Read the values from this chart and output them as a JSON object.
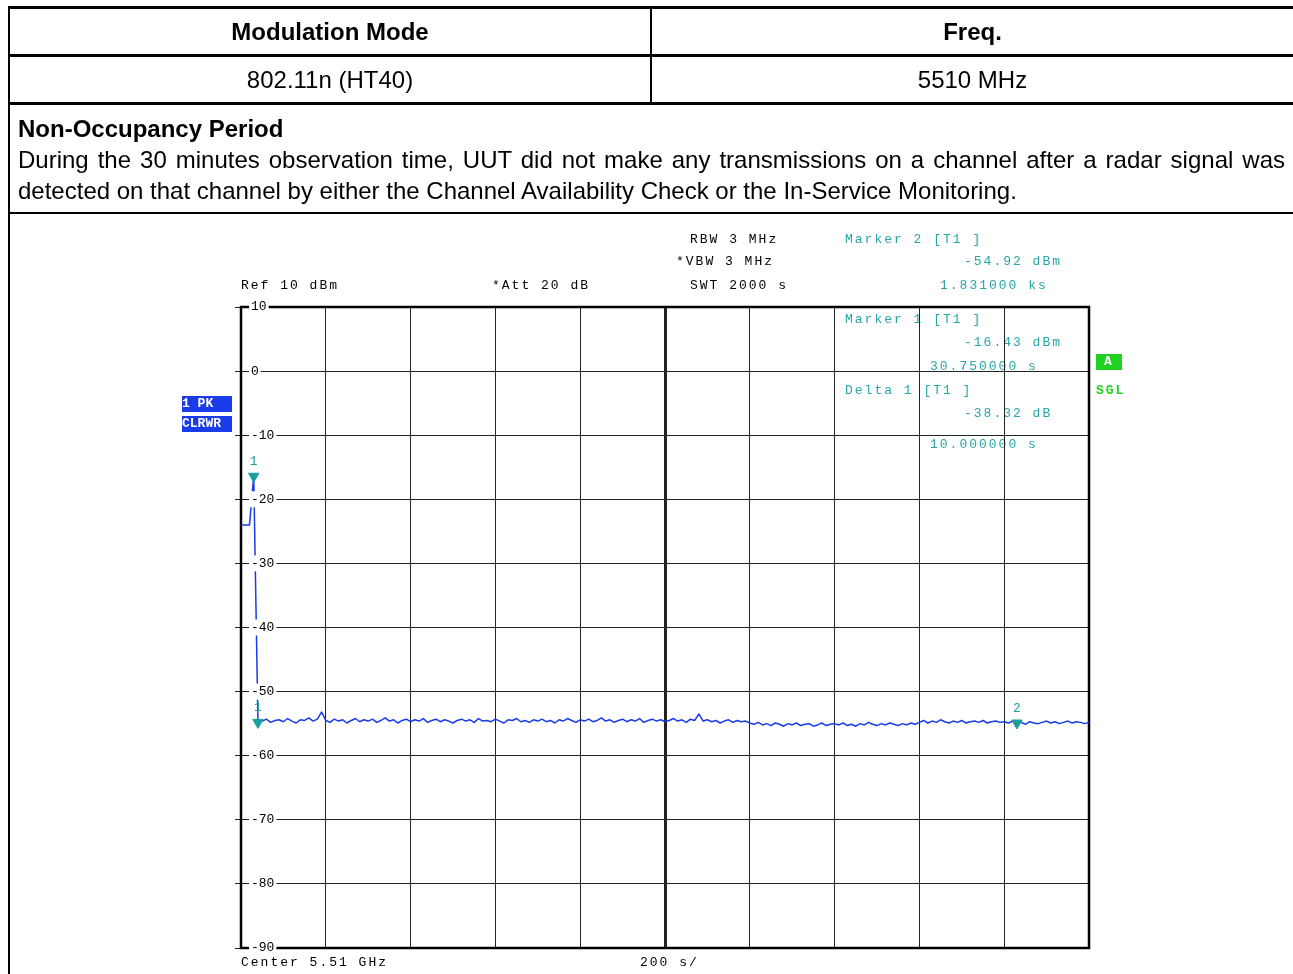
{
  "chart_data": {
    "type": "line",
    "title": "Non-Occupancy Period",
    "subtitle": "During the 30 minutes observation time, UUT did not make any transmissions on a channel after a radar signal was detected on that channel by either the Channel Availability Check or the In-Service Monitoring.",
    "annotations": [
      "Modulation Mode",
      "Freq.",
      "802.11n (HT40)",
      "5510 MHz",
      "RBW 3 MHz",
      "*VBW 3 MHz",
      "SWT 2000 s",
      "Ref 10 dBm",
      "*Att 20 dB",
      "Marker 2 [T1 ]",
      "-54.92 dBm",
      "1.831000 ks",
      "Marker 1 [T1 ]",
      "-16.43 dBm",
      "30.750000 s",
      "Delta 1 [T1 ]",
      "-38.32 dB",
      "10.000000 s",
      "1 PK",
      "CLRWR",
      "A",
      "SGL",
      "Center 5.51 GHz",
      "200 s/"
    ],
    "categories": [
      null,
      null,
      null,
      null,
      null,
      null,
      null,
      null,
      null,
      null,
      null,
      null,
      null,
      null,
      null,
      null,
      null,
      null,
      null,
      null,
      null,
      null,
      null,
      null,
      null,
      null,
      null,
      null,
      null,
      null,
      null,
      null,
      null,
      null,
      null,
      null,
      null,
      null,
      null,
      null,
      null,
      null,
      null,
      null,
      null,
      null,
      null,
      null,
      null,
      null,
      null,
      null,
      null,
      null,
      null,
      null,
      null,
      null,
      null,
      null,
      null,
      null,
      null,
      null,
      null,
      null,
      null,
      null,
      null,
      null,
      null,
      null,
      null,
      null,
      null,
      null,
      null,
      null,
      null,
      null,
      null,
      null,
      null,
      null,
      null,
      null,
      null,
      null,
      null,
      null,
      null,
      null,
      null,
      null,
      null,
      null,
      null,
      null,
      null,
      null,
      null,
      null,
      null,
      null,
      null,
      null,
      null,
      null,
      null,
      null,
      null,
      null,
      null,
      null,
      null,
      null,
      null,
      null,
      null,
      null,
      null,
      null,
      null,
      null,
      null,
      null,
      null,
      null,
      null,
      null,
      null,
      null,
      null,
      null,
      null,
      null,
      null,
      null,
      null,
      null,
      null,
      null,
      null,
      null,
      null,
      null,
      null,
      null,
      null,
      null,
      null,
      null,
      null,
      null,
      null,
      null,
      null,
      null,
      null,
      null,
      null,
      null,
      null,
      null,
      null,
      null,
      null,
      null,
      null,
      null,
      null,
      null,
      null,
      null,
      null,
      null,
      null,
      null,
      null,
      null,
      null,
      null,
      null,
      null,
      null,
      null,
      null,
      null,
      null,
      null,
      null,
      null,
      null,
      null,
      null,
      null,
      null,
      null,
      null,
      null,
      null
    ],
    "ylim": [
      -90,
      10
    ],
    "yticks": [
      10,
      0,
      -10,
      -20,
      -30,
      -40,
      -50,
      -60,
      -70,
      -80,
      -90
    ],
    "grid": true,
    "series": [
      {
        "type": "line",
        "marker": "none",
        "color": "#1a3ce8",
        "values": [
          -24,
          -24,
          -24,
          -16.4,
          -54.8,
          -54.6,
          -54.3,
          -54.8,
          -54.5,
          -54.4,
          -54.7,
          -54.2,
          -54.6,
          -54.9,
          -54.4,
          -54.5,
          -54.1,
          -54.6,
          -54.3,
          -53.2,
          -54.5,
          -54.8,
          -54.3,
          -54.6,
          -54.4,
          -54.9,
          -54.5,
          -54.2,
          -54.7,
          -54.4,
          -54.6,
          -54.3,
          -54.8,
          -54.5,
          -54.1,
          -54.6,
          -54.4,
          -54.9,
          -54.5,
          -54.3,
          -54.7,
          -54.4,
          -54.6,
          -54.2,
          -54.8,
          -54.5,
          -54.3,
          -54.7,
          -54.4,
          -54.6,
          -54.9,
          -54.5,
          -54.3,
          -54.6,
          -54.4,
          -54.8,
          -54.2,
          -54.6,
          -54.5,
          -54.7,
          -54.3,
          -54.6,
          -54.9,
          -54.4,
          -54.5,
          -54.2,
          -54.7,
          -54.5,
          -54.8,
          -54.4,
          -54.6,
          -54.3,
          -54.7,
          -54.5,
          -54.9,
          -54.4,
          -54.6,
          -54.2,
          -54.5,
          -54.8,
          -54.4,
          -54.6,
          -54.3,
          -54.7,
          -54.5,
          -54.1,
          -54.6,
          -54.4,
          -54.8,
          -54.5,
          -54.3,
          -54.7,
          -54.4,
          -54.6,
          -54.2,
          -54.8,
          -54.5,
          -54.3,
          -54.6,
          -54.4,
          -54.7,
          -54.5,
          -54.2,
          -54.6,
          -54.4,
          -54.8,
          -54.3,
          -54.5,
          -53.5,
          -54.6,
          -54.4,
          -54.7,
          -54.5,
          -54.9,
          -54.6,
          -54.4,
          -54.8,
          -54.5,
          -54.7,
          -54.6,
          -54.9,
          -55.1,
          -54.8,
          -55.2,
          -55.0,
          -55.3,
          -54.9,
          -55.1,
          -55.4,
          -55.0,
          -55.2,
          -54.9,
          -55.3,
          -55.1,
          -55.0,
          -55.4,
          -55.2,
          -54.9,
          -55.3,
          -55.1,
          -55.0,
          -55.2,
          -54.9,
          -55.3,
          -55.1,
          -55.4,
          -55.0,
          -55.2,
          -54.8,
          -55.1,
          -55.3,
          -55.0,
          -55.2,
          -54.9,
          -55.1,
          -55.3,
          -55.0,
          -55.2,
          -54.9,
          -55.1,
          -54.8,
          -54.5,
          -54.9,
          -54.6,
          -54.8,
          -54.4,
          -54.7,
          -54.9,
          -54.6,
          -54.8,
          -54.5,
          -54.9,
          -54.7,
          -54.6,
          -54.8,
          -54.5,
          -54.9,
          -54.7,
          -54.6,
          -54.8,
          -54.7,
          -54.9,
          -54.6,
          -54.9,
          -54.8,
          -55.1,
          -54.7,
          -54.9,
          -55.0,
          -54.8,
          -54.6,
          -54.9,
          -54.7,
          -55.0,
          -54.8,
          -54.6,
          -54.9,
          -54.7,
          -54.8,
          -55.0,
          -54.8
        ]
      },
      {
        "type": "scatter",
        "name": "1",
        "marker": "triangle",
        "color": "#1a9e9e",
        "values": [
          null,
          null,
          null,
          -16.4,
          -54.8,
          null,
          null,
          null,
          null,
          null,
          null,
          null,
          null,
          null,
          null,
          null,
          null,
          null,
          null,
          null,
          null,
          null,
          null,
          null,
          null,
          null,
          null,
          null,
          null,
          null,
          null,
          null,
          null,
          null,
          null,
          null,
          null,
          null,
          null,
          null,
          null,
          null,
          null,
          null,
          null,
          null,
          null,
          null,
          null,
          null,
          null,
          null,
          null,
          null,
          null,
          null,
          null,
          null,
          null,
          null,
          null,
          null,
          null,
          null,
          null,
          null,
          null,
          null,
          null,
          null,
          null,
          null,
          null,
          null,
          null,
          null,
          null,
          null,
          null,
          null,
          null,
          null,
          null,
          null,
          null,
          null,
          null,
          null,
          null,
          null,
          null,
          null,
          null,
          null,
          null,
          null,
          null,
          null,
          null,
          null,
          null,
          null,
          null,
          null,
          null,
          null,
          null,
          null,
          null,
          null,
          null,
          null,
          null,
          null,
          null,
          null,
          null,
          null,
          null,
          null,
          null,
          null,
          null,
          null,
          null,
          null,
          null,
          null,
          null,
          null,
          null,
          null,
          null,
          null,
          null,
          null,
          null,
          null,
          null,
          null,
          null,
          null,
          null,
          null,
          null,
          null,
          null,
          null,
          null,
          null,
          null,
          null,
          null,
          null,
          null,
          null,
          null,
          null,
          null,
          null,
          null,
          null,
          null,
          null,
          null,
          null,
          null,
          null,
          null,
          null,
          null,
          null,
          null,
          null,
          null,
          null,
          null,
          null,
          null,
          null,
          null,
          null,
          null,
          null,
          null,
          null,
          null,
          null,
          null,
          null,
          null,
          null,
          null,
          null,
          null,
          null,
          null,
          null,
          null,
          null,
          null
        ]
      },
      {
        "type": "scatter",
        "name": "2",
        "marker": "triangle",
        "color": "#1a9e9e",
        "values": [
          null,
          null,
          null,
          null,
          null,
          null,
          null,
          null,
          null,
          null,
          null,
          null,
          null,
          null,
          null,
          null,
          null,
          null,
          null,
          null,
          null,
          null,
          null,
          null,
          null,
          null,
          null,
          null,
          null,
          null,
          null,
          null,
          null,
          null,
          null,
          null,
          null,
          null,
          null,
          null,
          null,
          null,
          null,
          null,
          null,
          null,
          null,
          null,
          null,
          null,
          null,
          null,
          null,
          null,
          null,
          null,
          null,
          null,
          null,
          null,
          null,
          null,
          null,
          null,
          null,
          null,
          null,
          null,
          null,
          null,
          null,
          null,
          null,
          null,
          null,
          null,
          null,
          null,
          null,
          null,
          null,
          null,
          null,
          null,
          null,
          null,
          null,
          null,
          null,
          null,
          null,
          null,
          null,
          null,
          null,
          null,
          null,
          null,
          null,
          null,
          null,
          null,
          null,
          null,
          null,
          null,
          null,
          null,
          null,
          null,
          null,
          null,
          null,
          null,
          null,
          null,
          null,
          null,
          null,
          null,
          null,
          null,
          null,
          null,
          null,
          null,
          null,
          null,
          null,
          null,
          null,
          null,
          null,
          null,
          null,
          null,
          null,
          null,
          null,
          null,
          null,
          null,
          null,
          null,
          null,
          null,
          null,
          null,
          null,
          null,
          null,
          null,
          null,
          null,
          null,
          null,
          null,
          null,
          null,
          null,
          null,
          null,
          null,
          null,
          null,
          null,
          null,
          null,
          null,
          null,
          null,
          null,
          null,
          null,
          null,
          null,
          null,
          null,
          null,
          null,
          null,
          null,
          null,
          -54.9,
          null,
          null,
          null,
          null,
          null,
          null,
          null,
          null,
          null,
          null,
          null,
          null,
          null,
          null,
          null,
          null,
          null
        ]
      }
    ]
  }
}
